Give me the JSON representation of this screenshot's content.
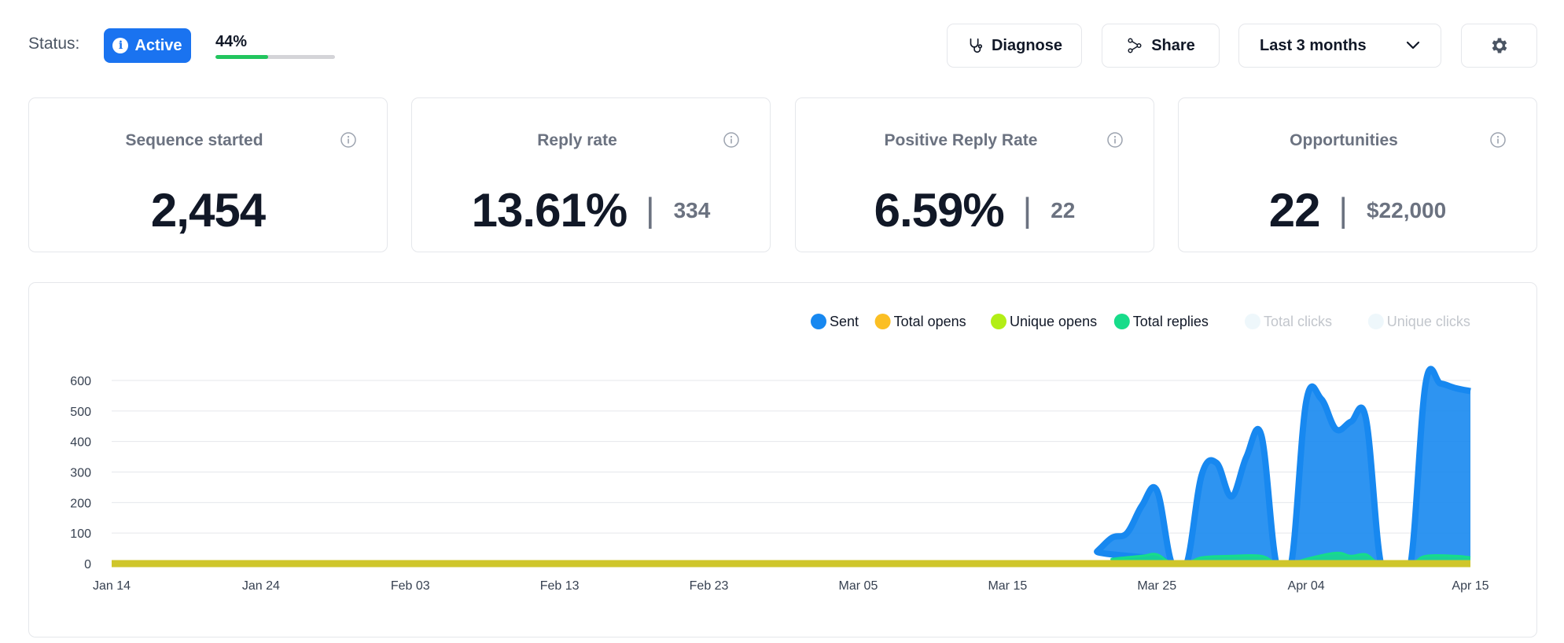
{
  "status": {
    "label": "Status:",
    "badge": "Active",
    "progress_text": "44%",
    "progress_value": 0.44
  },
  "toolbar": {
    "diagnose_label": "Diagnose",
    "share_label": "Share",
    "range_label": "Last 3 months",
    "settings_icon": "gear-icon"
  },
  "cards": [
    {
      "title": "Sequence started",
      "value": "2,454",
      "secondary": ""
    },
    {
      "title": "Reply rate",
      "value": "13.61%",
      "secondary": "334"
    },
    {
      "title": "Positive Reply Rate",
      "value": "6.59%",
      "secondary": "22"
    },
    {
      "title": "Opportunities",
      "value": "22",
      "secondary": "$22,000"
    }
  ],
  "colors": {
    "accent": "#1a73f0",
    "progress": "#22c55e",
    "sent": "#1788f0",
    "total_opens": "#fbbf24",
    "unique_opens": "#b2ee16",
    "total_replies": "#17dc8a",
    "baseline": "#cfc62b"
  },
  "chart_data": {
    "type": "area",
    "ylim": [
      0,
      600
    ],
    "yticks": [
      "0",
      "100",
      "200",
      "300",
      "400",
      "500",
      "600"
    ],
    "xticks": [
      "Jan 14",
      "Jan 24",
      "Feb 03",
      "Feb 13",
      "Feb 23",
      "Mar 05",
      "Mar 15",
      "Mar 25",
      "Apr 04",
      "Apr 15"
    ],
    "legend_position": "top-right",
    "grid": true,
    "legend": [
      {
        "name": "Sent",
        "color": "#1788f0",
        "active": true
      },
      {
        "name": "Total opens",
        "color": "#fbbf24",
        "active": true
      },
      {
        "name": "Unique opens",
        "color": "#b2ee16",
        "active": true
      },
      {
        "name": "Total replies",
        "color": "#17dc8a",
        "active": true
      },
      {
        "name": "Total clicks",
        "color": "#eef7fb",
        "active": false
      },
      {
        "name": "Unique clicks",
        "color": "#eef7fb",
        "active": false
      }
    ],
    "series": [
      {
        "name": "Sent",
        "points": [
          [
            "Jan 14",
            0
          ],
          [
            "Mar 20",
            0
          ],
          [
            "Mar 21",
            40
          ],
          [
            "Mar 22",
            85
          ],
          [
            "Mar 23",
            100
          ],
          [
            "Mar 24",
            190
          ],
          [
            "Mar 25",
            240
          ],
          [
            "Mar 26",
            0
          ],
          [
            "Mar 27",
            0
          ],
          [
            "Mar 28",
            290
          ],
          [
            "Mar 29",
            330
          ],
          [
            "Mar 30",
            220
          ],
          [
            "Mar 31",
            350
          ],
          [
            "Apr 01",
            420
          ],
          [
            "Apr 02",
            0
          ],
          [
            "Apr 03",
            0
          ],
          [
            "Apr 04",
            530
          ],
          [
            "Apr 05",
            540
          ],
          [
            "Apr 06",
            440
          ],
          [
            "Apr 07",
            465
          ],
          [
            "Apr 08",
            475
          ],
          [
            "Apr 09",
            0
          ],
          [
            "Apr 10",
            0
          ],
          [
            "Apr 11",
            0
          ],
          [
            "Apr 12",
            590
          ],
          [
            "Apr 13",
            590
          ],
          [
            "Apr 14",
            575
          ],
          [
            "Apr 15",
            565
          ]
        ]
      },
      {
        "name": "Total replies",
        "points": [
          [
            "Jan 14",
            0
          ],
          [
            "Mar 20",
            0
          ],
          [
            "Mar 22",
            15
          ],
          [
            "Mar 24",
            25
          ],
          [
            "Mar 25",
            30
          ],
          [
            "Mar 26",
            0
          ],
          [
            "Mar 27",
            0
          ],
          [
            "Mar 28",
            20
          ],
          [
            "Mar 30",
            25
          ],
          [
            "Apr 01",
            25
          ],
          [
            "Apr 02",
            0
          ],
          [
            "Apr 03",
            0
          ],
          [
            "Apr 04",
            15
          ],
          [
            "Apr 06",
            35
          ],
          [
            "Apr 07",
            25
          ],
          [
            "Apr 08",
            30
          ],
          [
            "Apr 09",
            0
          ],
          [
            "Apr 11",
            0
          ],
          [
            "Apr 12",
            25
          ],
          [
            "Apr 14",
            25
          ],
          [
            "Apr 15",
            20
          ]
        ]
      },
      {
        "name": "Unique opens",
        "points": [
          [
            "Jan 14",
            0
          ],
          [
            "Apr 15",
            0
          ]
        ]
      }
    ]
  }
}
